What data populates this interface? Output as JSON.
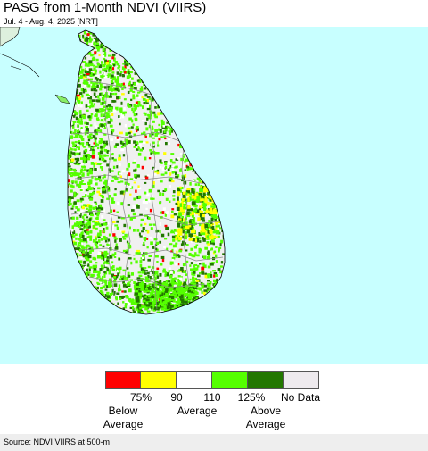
{
  "title": "PASG from 1-Month NDVI (VIIRS)",
  "subtitle": "Jul. 4 - Aug. 4, 2025 [NRT]",
  "map": {
    "ocean_color": "#c8ffff",
    "land_base_color": "#f0f0f0",
    "border_color": "#888888",
    "coast_color": "#000000"
  },
  "legend": {
    "swatches": [
      {
        "name": "below-75",
        "color": "#ff0000"
      },
      {
        "name": "75-90",
        "color": "#ffff00"
      },
      {
        "name": "90-110",
        "color": "#ffffff"
      },
      {
        "name": "110-125",
        "color": "#55ff00"
      },
      {
        "name": "above-125",
        "color": "#227700"
      },
      {
        "name": "no-data",
        "color": "#eeeaee"
      }
    ],
    "ticks": [
      "75%",
      "90",
      "110",
      "125%",
      "No Data"
    ],
    "categories": [
      "Below\nAverage",
      "Average",
      "Above\nAverage"
    ]
  },
  "source": "Source: NDVI VIIRS at 500-m"
}
